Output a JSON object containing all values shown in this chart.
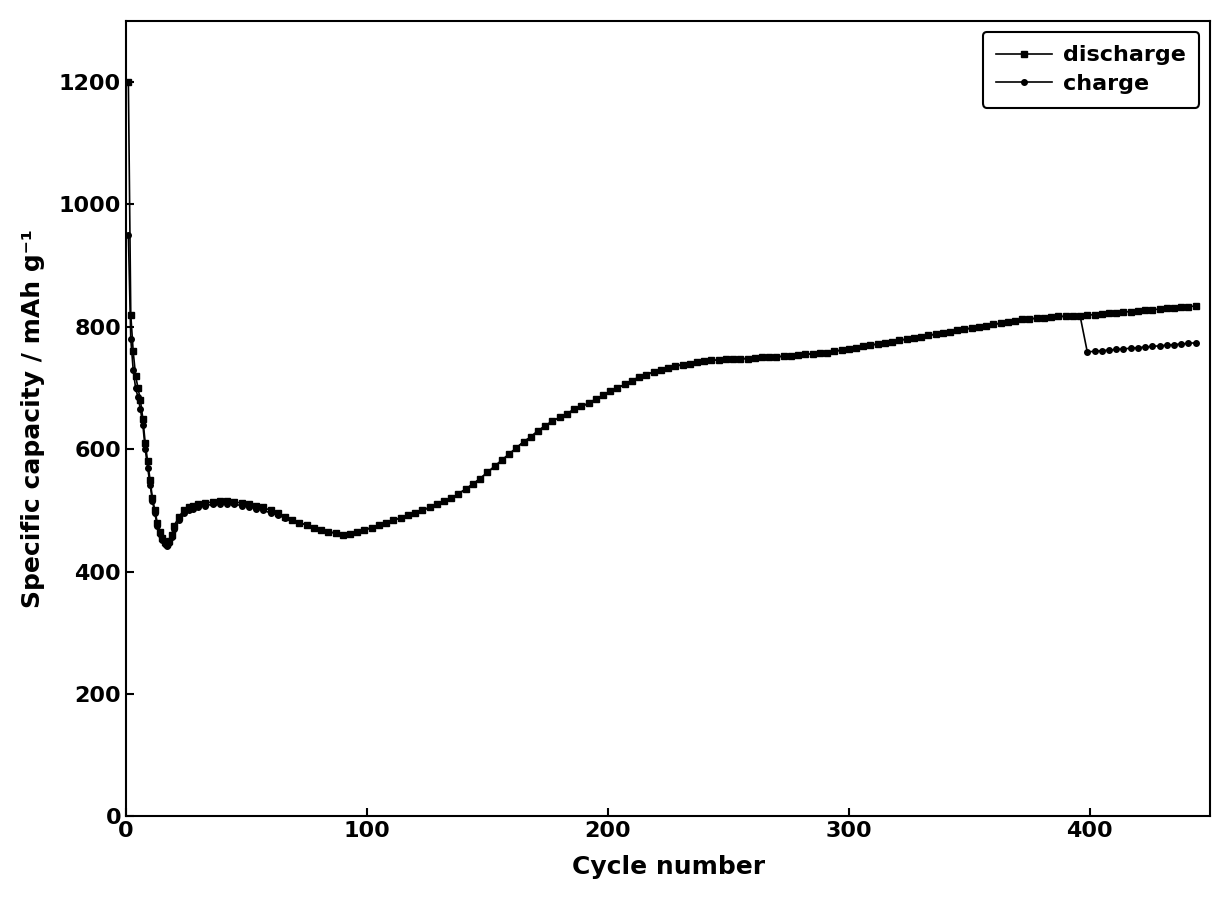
{
  "title": "",
  "xlabel": "Cycle number",
  "ylabel": "Specific capacity / mAh g⁻¹",
  "xlim": [
    0,
    450
  ],
  "ylim": [
    0,
    1300
  ],
  "xticks": [
    0,
    100,
    200,
    300,
    400
  ],
  "yticks": [
    0,
    200,
    400,
    600,
    800,
    1000,
    1200
  ],
  "line_color": "#000000",
  "background_color": "#ffffff",
  "discharge_label": "discharge",
  "charge_label": "charge",
  "discharge_marker": "s",
  "charge_marker": "o",
  "markersize": 4,
  "linewidth": 1.2,
  "legend_fontsize": 16,
  "axis_label_fontsize": 18,
  "tick_fontsize": 16,
  "discharge_x": [
    1,
    2,
    3,
    4,
    5,
    6,
    7,
    8,
    9,
    10,
    11,
    12,
    13,
    14,
    15,
    16,
    17,
    18,
    19,
    20,
    22,
    24,
    26,
    28,
    30,
    33,
    36,
    39,
    42,
    45,
    48,
    51,
    54,
    57,
    60,
    63,
    66,
    69,
    72,
    75,
    78,
    81,
    84,
    87,
    90,
    93,
    96,
    99,
    102,
    105,
    108,
    111,
    114,
    117,
    120,
    123,
    126,
    129,
    132,
    135,
    138,
    141,
    144,
    147,
    150,
    153,
    156,
    159,
    162,
    165,
    168,
    171,
    174,
    177,
    180,
    183,
    186,
    189,
    192,
    195,
    198,
    201,
    204,
    207,
    210,
    213,
    216,
    219,
    222,
    225,
    228,
    231,
    234,
    237,
    240,
    243,
    246,
    249,
    252,
    255,
    258,
    261,
    264,
    267,
    270,
    273,
    276,
    279,
    282,
    285,
    288,
    291,
    294,
    297,
    300,
    303,
    306,
    309,
    312,
    315,
    318,
    321,
    324,
    327,
    330,
    333,
    336,
    339,
    342,
    345,
    348,
    351,
    354,
    357,
    360,
    363,
    366,
    369,
    372,
    375,
    378,
    381,
    384,
    387,
    390,
    393,
    396,
    399,
    402,
    405,
    408,
    411,
    414,
    417,
    420,
    423,
    426,
    429,
    432,
    435,
    438,
    441,
    444
  ],
  "discharge_y": [
    1200,
    820,
    760,
    720,
    700,
    680,
    650,
    610,
    580,
    550,
    520,
    500,
    480,
    465,
    455,
    448,
    445,
    450,
    460,
    475,
    490,
    500,
    505,
    508,
    510,
    512,
    514,
    515,
    515,
    514,
    512,
    510,
    508,
    505,
    500,
    495,
    490,
    485,
    480,
    476,
    472,
    468,
    465,
    463,
    460,
    462,
    465,
    468,
    472,
    476,
    480,
    484,
    488,
    492,
    496,
    500,
    505,
    510,
    515,
    520,
    527,
    535,
    543,
    552,
    562,
    572,
    582,
    592,
    602,
    612,
    620,
    630,
    638,
    646,
    652,
    658,
    665,
    670,
    675,
    682,
    688,
    695,
    700,
    706,
    712,
    718,
    722,
    726,
    730,
    733,
    736,
    738,
    740,
    742,
    744,
    745,
    746,
    747,
    747,
    748,
    748,
    749,
    750,
    750,
    751,
    752,
    753,
    754,
    755,
    756,
    757,
    758,
    760,
    762,
    764,
    766,
    768,
    770,
    772,
    774,
    776,
    778,
    780,
    782,
    784,
    786,
    788,
    790,
    792,
    794,
    796,
    798,
    800,
    802,
    804,
    806,
    808,
    810,
    812,
    813,
    814,
    815,
    816,
    817,
    817,
    818,
    818,
    819,
    820,
    821,
    822,
    823,
    824,
    825,
    826,
    827,
    828,
    829,
    830,
    831,
    832,
    833,
    834
  ],
  "charge_x": [
    1,
    2,
    3,
    4,
    5,
    6,
    7,
    8,
    9,
    10,
    11,
    12,
    13,
    14,
    15,
    16,
    17,
    18,
    19,
    20,
    22,
    24,
    26,
    28,
    30,
    33,
    36,
    39,
    42,
    45,
    48,
    51,
    54,
    57,
    60,
    63,
    66,
    69,
    72,
    75,
    78,
    81,
    84,
    87,
    90,
    93,
    96,
    99,
    102,
    105,
    108,
    111,
    114,
    117,
    120,
    123,
    126,
    129,
    132,
    135,
    138,
    141,
    144,
    147,
    150,
    153,
    156,
    159,
    162,
    165,
    168,
    171,
    174,
    177,
    180,
    183,
    186,
    189,
    192,
    195,
    198,
    201,
    204,
    207,
    210,
    213,
    216,
    219,
    222,
    225,
    228,
    231,
    234,
    237,
    240,
    243,
    246,
    249,
    252,
    255,
    258,
    261,
    264,
    267,
    270,
    273,
    276,
    279,
    282,
    285,
    288,
    291,
    294,
    297,
    300,
    303,
    306,
    309,
    312,
    315,
    318,
    321,
    324,
    327,
    330,
    333,
    336,
    339,
    342,
    345,
    348,
    351,
    354,
    357,
    360,
    363,
    366,
    369,
    372,
    375,
    378,
    381,
    384,
    387,
    390,
    393,
    396,
    399,
    402,
    405,
    408,
    411,
    414,
    417,
    420,
    423,
    426,
    429,
    432,
    435,
    438,
    441,
    444
  ],
  "charge_y": [
    950,
    780,
    730,
    700,
    685,
    665,
    640,
    600,
    570,
    542,
    515,
    495,
    475,
    462,
    452,
    445,
    442,
    447,
    457,
    470,
    485,
    496,
    500,
    503,
    506,
    508,
    510,
    511,
    511,
    510,
    508,
    506,
    503,
    500,
    496,
    492,
    488,
    484,
    480,
    476,
    472,
    468,
    465,
    463,
    460,
    462,
    465,
    468,
    472,
    476,
    480,
    484,
    488,
    492,
    496,
    500,
    505,
    510,
    515,
    520,
    527,
    535,
    543,
    552,
    562,
    572,
    582,
    592,
    602,
    612,
    620,
    630,
    638,
    646,
    652,
    658,
    665,
    670,
    675,
    682,
    688,
    695,
    700,
    706,
    712,
    718,
    722,
    726,
    730,
    733,
    736,
    738,
    740,
    742,
    744,
    745,
    746,
    747,
    747,
    748,
    748,
    749,
    750,
    750,
    751,
    752,
    753,
    754,
    755,
    756,
    757,
    758,
    760,
    762,
    764,
    766,
    768,
    770,
    772,
    774,
    776,
    778,
    780,
    782,
    784,
    786,
    788,
    790,
    792,
    794,
    796,
    798,
    800,
    802,
    804,
    806,
    808,
    810,
    812,
    813,
    814,
    815,
    816,
    817,
    817,
    818,
    818,
    759,
    760,
    761,
    762,
    763,
    764,
    765,
    766,
    767,
    768,
    769,
    770,
    771,
    772,
    773,
    774
  ]
}
